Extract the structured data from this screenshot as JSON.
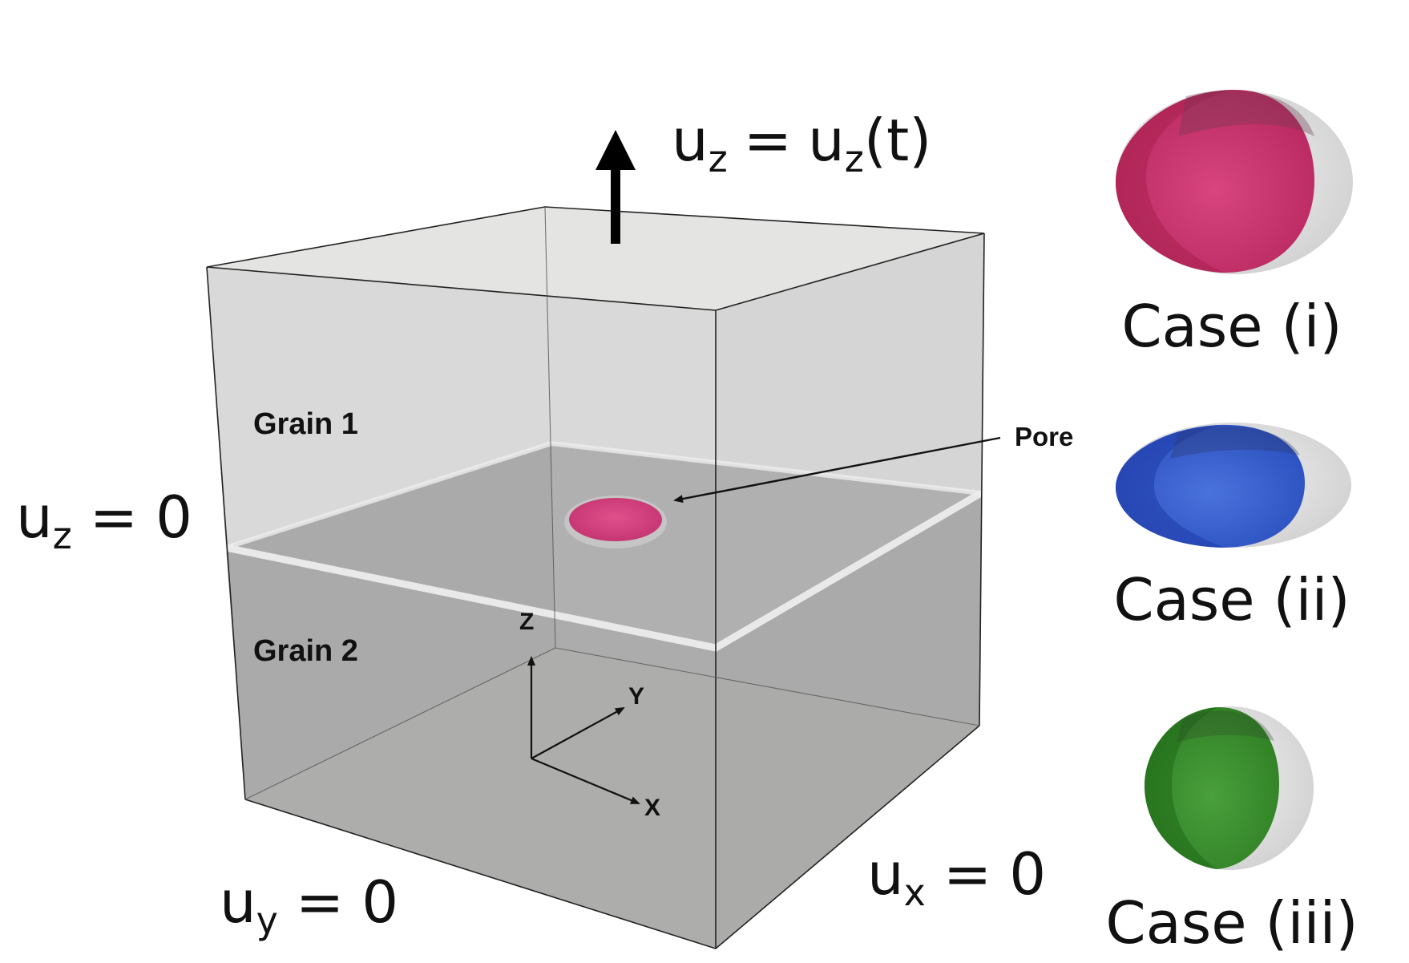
{
  "colors": {
    "case_i": "#d23f7c",
    "case_ii": "#3f68d6",
    "case_iii": "#3f9a32",
    "pore": "#d8457f",
    "shell": "#dedede"
  },
  "labels": {
    "grain1": "Grain 1",
    "grain2": "Grain 2",
    "pore": "Pore",
    "axis_z": "Z",
    "axis_y": "Y",
    "axis_x": "X"
  },
  "boundary_conditions": {
    "top": {
      "var": "u",
      "sub": "z",
      "rhs_var": "u",
      "rhs_sub": "z",
      "rhs_tail": "(t)",
      "eq": "="
    },
    "left": {
      "var": "u",
      "sub": "z",
      "eq": "=",
      "rhs": "0"
    },
    "bottom_left": {
      "var": "u",
      "sub": "y",
      "eq": "=",
      "rhs": "0"
    },
    "bottom_right": {
      "var": "u",
      "sub": "x",
      "eq": "=",
      "rhs": "0"
    }
  },
  "cases": [
    {
      "label": "Case (i)",
      "icon": "ellipsoid-pink-icon"
    },
    {
      "label": "Case (ii)",
      "icon": "ellipsoid-blue-icon"
    },
    {
      "label": "Case (iii)",
      "icon": "ellipsoid-green-icon"
    }
  ]
}
